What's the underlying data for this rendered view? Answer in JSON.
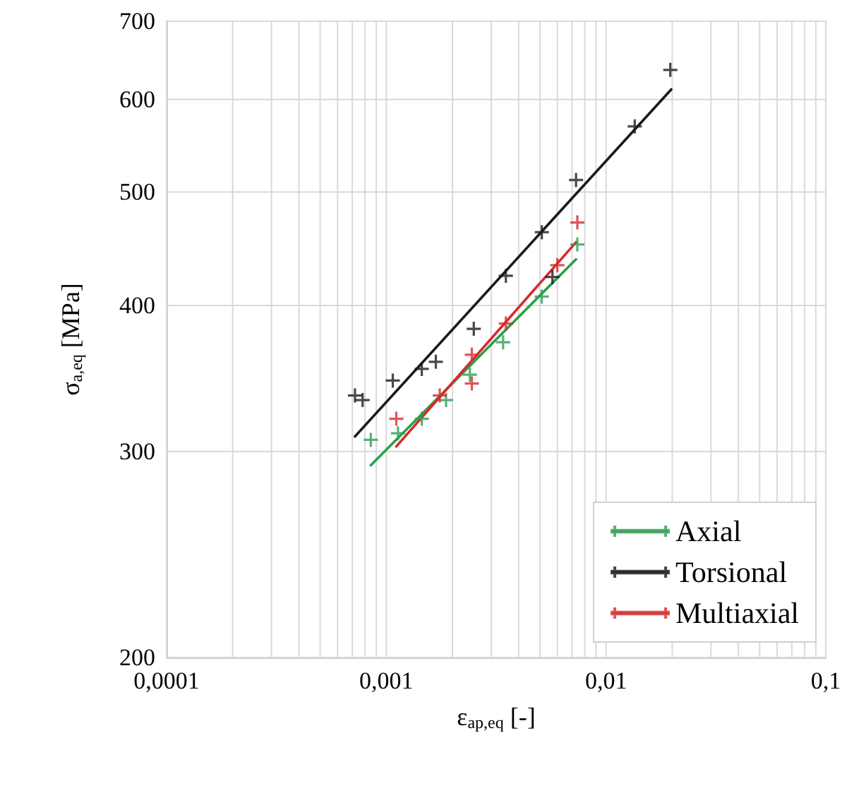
{
  "chart_data": {
    "type": "scatter",
    "xlabel": "ε$_{ap,eq}$ [-]",
    "ylabel": "σ$_{a,eq}$ [MPa]",
    "log": "xy",
    "grid": true,
    "legend": "bottom right",
    "marker": "cross",
    "xlim": [
      0.0001,
      0.1
    ],
    "ylim": [
      200,
      700
    ],
    "xticks": [
      {
        "value": 0.0001,
        "label": "0,0001"
      },
      {
        "value": 0.0002,
        "label": null
      },
      {
        "value": 0.0003,
        "label": null
      },
      {
        "value": 0.0004,
        "label": null
      },
      {
        "value": 0.0005,
        "label": null
      },
      {
        "value": 0.0006,
        "label": null
      },
      {
        "value": 0.0007,
        "label": null
      },
      {
        "value": 0.0008,
        "label": null
      },
      {
        "value": 0.0009,
        "label": null
      },
      {
        "value": 0.001,
        "label": "0,001"
      },
      {
        "value": 0.002,
        "label": null
      },
      {
        "value": 0.003,
        "label": null
      },
      {
        "value": 0.004,
        "label": null
      },
      {
        "value": 0.005,
        "label": null
      },
      {
        "value": 0.006,
        "label": null
      },
      {
        "value": 0.007,
        "label": null
      },
      {
        "value": 0.008,
        "label": null
      },
      {
        "value": 0.009,
        "label": null
      },
      {
        "value": 0.01,
        "label": "0,01"
      },
      {
        "value": 0.02,
        "label": null
      },
      {
        "value": 0.03,
        "label": null
      },
      {
        "value": 0.04,
        "label": null
      },
      {
        "value": 0.05,
        "label": null
      },
      {
        "value": 0.06,
        "label": null
      },
      {
        "value": 0.07,
        "label": null
      },
      {
        "value": 0.08,
        "label": null
      },
      {
        "value": 0.09,
        "label": null
      },
      {
        "value": 0.1,
        "label": "0,1"
      }
    ],
    "yticks": [
      200,
      300,
      400,
      500,
      600,
      700
    ],
    "series": [
      {
        "name": "Axial",
        "color": "#2e9e4f",
        "x": [
          0.00085,
          0.00113,
          0.00145,
          0.00187,
          0.0024,
          0.0034,
          0.0051,
          0.0074
        ],
        "values": [
          307,
          311,
          320,
          332,
          349,
          372,
          407,
          451
        ]
      },
      {
        "name": "Torsional",
        "color": "#1a1a1a",
        "x": [
          0.00072,
          0.00078,
          0.00107,
          0.00145,
          0.00168,
          0.0025,
          0.0035,
          0.0057,
          0.0051,
          0.0073,
          0.0135,
          0.0196
        ],
        "values": [
          335,
          332,
          345,
          353,
          358,
          382,
          424,
          423,
          462,
          512,
          569,
          636
        ]
      },
      {
        "name": "Multiaxial",
        "color": "#d62b2b",
        "x": [
          0.00111,
          0.00175,
          0.00245,
          0.00245,
          0.0035,
          0.006,
          0.0074
        ],
        "values": [
          320,
          335,
          363,
          343,
          386,
          433,
          471
        ]
      },
      {
        "type": "line",
        "color": "#2e9e4f",
        "marker": "none",
        "x": [
          0.00085,
          0.0073
        ],
        "values": [
          292,
          438
        ]
      },
      {
        "type": "line",
        "color": "#1a1a1a",
        "marker": "none",
        "x": [
          0.00072,
          0.0198
        ],
        "values": [
          309,
          612
        ]
      },
      {
        "type": "line",
        "color": "#d62b2b",
        "marker": "none",
        "x": [
          0.00111,
          0.0073
        ],
        "values": [
          303,
          453
        ]
      }
    ]
  }
}
